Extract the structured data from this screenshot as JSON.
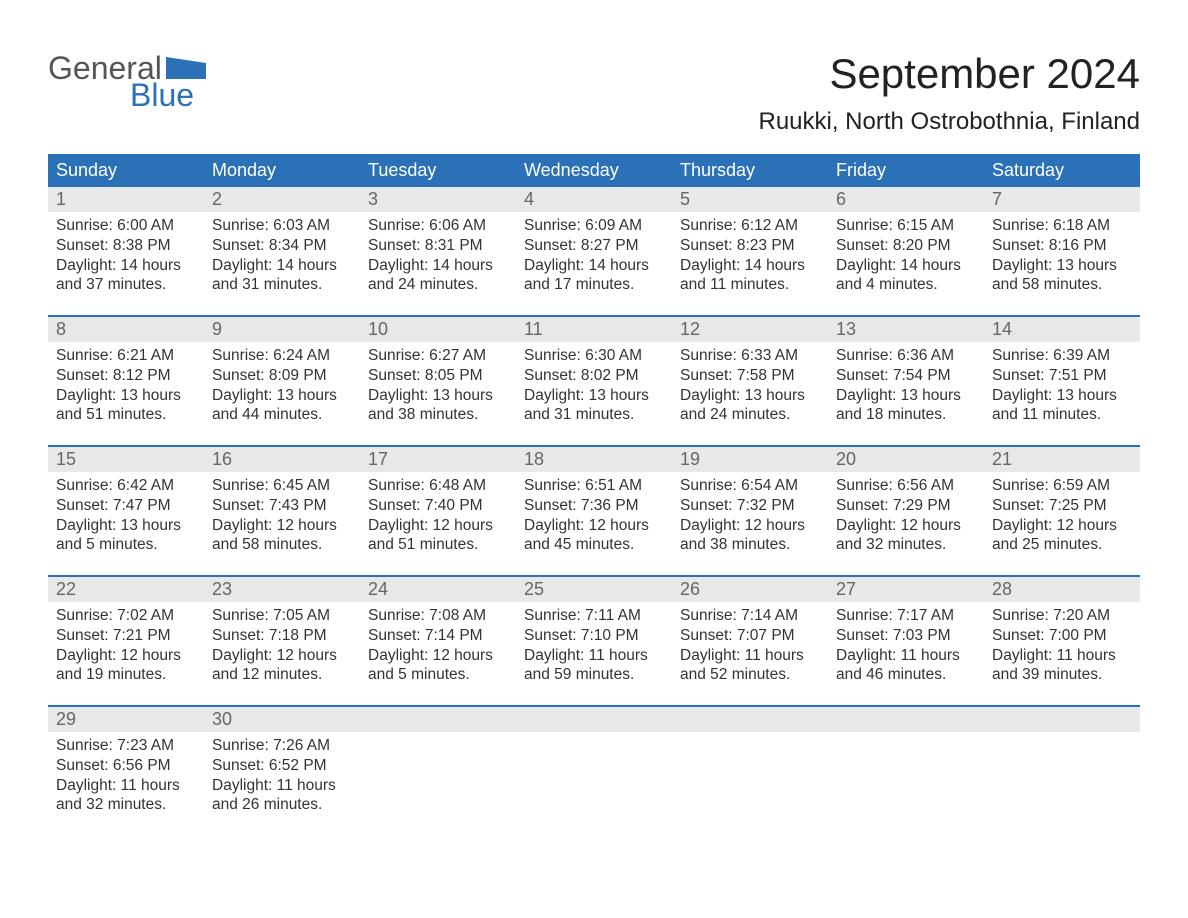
{
  "logo": {
    "text1": "General",
    "text2": "Blue",
    "flag_color": "#2a71b8"
  },
  "title": "September 2024",
  "location": "Ruukki, North Ostrobothnia, Finland",
  "colors": {
    "header_bg": "#2a71b8",
    "header_text": "#ffffff",
    "daynum_bg": "#e8e8e8",
    "daynum_text": "#666666",
    "body_text": "#333333",
    "row_border": "#2a71b8"
  },
  "fonts": {
    "title_size": 42,
    "location_size": 24,
    "dayhead_size": 18,
    "body_size": 15.5
  },
  "day_headers": [
    "Sunday",
    "Monday",
    "Tuesday",
    "Wednesday",
    "Thursday",
    "Friday",
    "Saturday"
  ],
  "weeks": [
    [
      {
        "n": "1",
        "sunrise": "6:00 AM",
        "sunset": "8:38 PM",
        "dl1": "14 hours",
        "dl2": "and 37 minutes."
      },
      {
        "n": "2",
        "sunrise": "6:03 AM",
        "sunset": "8:34 PM",
        "dl1": "14 hours",
        "dl2": "and 31 minutes."
      },
      {
        "n": "3",
        "sunrise": "6:06 AM",
        "sunset": "8:31 PM",
        "dl1": "14 hours",
        "dl2": "and 24 minutes."
      },
      {
        "n": "4",
        "sunrise": "6:09 AM",
        "sunset": "8:27 PM",
        "dl1": "14 hours",
        "dl2": "and 17 minutes."
      },
      {
        "n": "5",
        "sunrise": "6:12 AM",
        "sunset": "8:23 PM",
        "dl1": "14 hours",
        "dl2": "and 11 minutes."
      },
      {
        "n": "6",
        "sunrise": "6:15 AM",
        "sunset": "8:20 PM",
        "dl1": "14 hours",
        "dl2": "and 4 minutes."
      },
      {
        "n": "7",
        "sunrise": "6:18 AM",
        "sunset": "8:16 PM",
        "dl1": "13 hours",
        "dl2": "and 58 minutes."
      }
    ],
    [
      {
        "n": "8",
        "sunrise": "6:21 AM",
        "sunset": "8:12 PM",
        "dl1": "13 hours",
        "dl2": "and 51 minutes."
      },
      {
        "n": "9",
        "sunrise": "6:24 AM",
        "sunset": "8:09 PM",
        "dl1": "13 hours",
        "dl2": "and 44 minutes."
      },
      {
        "n": "10",
        "sunrise": "6:27 AM",
        "sunset": "8:05 PM",
        "dl1": "13 hours",
        "dl2": "and 38 minutes."
      },
      {
        "n": "11",
        "sunrise": "6:30 AM",
        "sunset": "8:02 PM",
        "dl1": "13 hours",
        "dl2": "and 31 minutes."
      },
      {
        "n": "12",
        "sunrise": "6:33 AM",
        "sunset": "7:58 PM",
        "dl1": "13 hours",
        "dl2": "and 24 minutes."
      },
      {
        "n": "13",
        "sunrise": "6:36 AM",
        "sunset": "7:54 PM",
        "dl1": "13 hours",
        "dl2": "and 18 minutes."
      },
      {
        "n": "14",
        "sunrise": "6:39 AM",
        "sunset": "7:51 PM",
        "dl1": "13 hours",
        "dl2": "and 11 minutes."
      }
    ],
    [
      {
        "n": "15",
        "sunrise": "6:42 AM",
        "sunset": "7:47 PM",
        "dl1": "13 hours",
        "dl2": "and 5 minutes."
      },
      {
        "n": "16",
        "sunrise": "6:45 AM",
        "sunset": "7:43 PM",
        "dl1": "12 hours",
        "dl2": "and 58 minutes."
      },
      {
        "n": "17",
        "sunrise": "6:48 AM",
        "sunset": "7:40 PM",
        "dl1": "12 hours",
        "dl2": "and 51 minutes."
      },
      {
        "n": "18",
        "sunrise": "6:51 AM",
        "sunset": "7:36 PM",
        "dl1": "12 hours",
        "dl2": "and 45 minutes."
      },
      {
        "n": "19",
        "sunrise": "6:54 AM",
        "sunset": "7:32 PM",
        "dl1": "12 hours",
        "dl2": "and 38 minutes."
      },
      {
        "n": "20",
        "sunrise": "6:56 AM",
        "sunset": "7:29 PM",
        "dl1": "12 hours",
        "dl2": "and 32 minutes."
      },
      {
        "n": "21",
        "sunrise": "6:59 AM",
        "sunset": "7:25 PM",
        "dl1": "12 hours",
        "dl2": "and 25 minutes."
      }
    ],
    [
      {
        "n": "22",
        "sunrise": "7:02 AM",
        "sunset": "7:21 PM",
        "dl1": "12 hours",
        "dl2": "and 19 minutes."
      },
      {
        "n": "23",
        "sunrise": "7:05 AM",
        "sunset": "7:18 PM",
        "dl1": "12 hours",
        "dl2": "and 12 minutes."
      },
      {
        "n": "24",
        "sunrise": "7:08 AM",
        "sunset": "7:14 PM",
        "dl1": "12 hours",
        "dl2": "and 5 minutes."
      },
      {
        "n": "25",
        "sunrise": "7:11 AM",
        "sunset": "7:10 PM",
        "dl1": "11 hours",
        "dl2": "and 59 minutes."
      },
      {
        "n": "26",
        "sunrise": "7:14 AM",
        "sunset": "7:07 PM",
        "dl1": "11 hours",
        "dl2": "and 52 minutes."
      },
      {
        "n": "27",
        "sunrise": "7:17 AM",
        "sunset": "7:03 PM",
        "dl1": "11 hours",
        "dl2": "and 46 minutes."
      },
      {
        "n": "28",
        "sunrise": "7:20 AM",
        "sunset": "7:00 PM",
        "dl1": "11 hours",
        "dl2": "and 39 minutes."
      }
    ],
    [
      {
        "n": "29",
        "sunrise": "7:23 AM",
        "sunset": "6:56 PM",
        "dl1": "11 hours",
        "dl2": "and 32 minutes."
      },
      {
        "n": "30",
        "sunrise": "7:26 AM",
        "sunset": "6:52 PM",
        "dl1": "11 hours",
        "dl2": "and 26 minutes."
      },
      null,
      null,
      null,
      null,
      null
    ]
  ],
  "labels": {
    "sunrise": "Sunrise: ",
    "sunset": "Sunset: ",
    "daylight": "Daylight: "
  }
}
